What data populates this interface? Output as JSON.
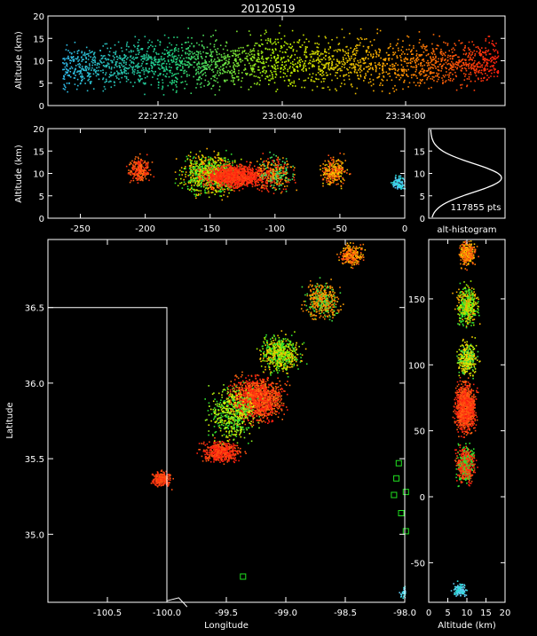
{
  "figure": {
    "title": "20120519",
    "annotation_points": "117855 pts",
    "axis_color": "#ffffff",
    "background": "#000000"
  },
  "chart_data": [
    {
      "type": "scatter",
      "panel": "altitude-vs-time",
      "x_ticks": [
        "22:27:20",
        "23:00:40",
        "23:34:00"
      ],
      "ylabel": "Altitude (km)",
      "y_ticks": [
        0,
        5,
        10,
        15,
        20
      ],
      "ylim": [
        0,
        20
      ],
      "color_encoding": "time (cyan early → red late)",
      "density_profile": [
        {
          "x_frac": 0.0,
          "alt_lo": 3,
          "alt_hi": 14,
          "color": "#2fb8e8"
        },
        {
          "x_frac": 0.25,
          "alt_lo": 3,
          "alt_hi": 16,
          "color": "#20d080"
        },
        {
          "x_frac": 0.5,
          "alt_lo": 3,
          "alt_hi": 17,
          "color": "#b6f000"
        },
        {
          "x_frac": 0.75,
          "alt_lo": 3,
          "alt_hi": 16,
          "color": "#ffa000"
        },
        {
          "x_frac": 1.0,
          "alt_lo": 4,
          "alt_hi": 16,
          "color": "#ff2010"
        }
      ]
    },
    {
      "type": "scatter",
      "panel": "altitude-vs-east-west",
      "x_ticks": [
        -250,
        -200,
        -150,
        -100,
        -50,
        0
      ],
      "xlim": [
        -275,
        0
      ],
      "ylabel": "Altitude (km)",
      "y_ticks": [
        0,
        5,
        10,
        15,
        20
      ],
      "ylim": [
        0,
        20
      ]
    },
    {
      "type": "line",
      "panel": "alt-histogram",
      "xlabel": "alt-histogram",
      "y_ticks": [
        0,
        5,
        10,
        15
      ],
      "ylim": [
        0,
        20
      ],
      "peak_altitude_km": 9,
      "spread_km": 3.2,
      "points_label": "117855 pts"
    },
    {
      "type": "scatter",
      "panel": "plan-view",
      "xlabel": "Longitude",
      "ylabel": "Latitude",
      "x_ticks": [
        -100.5,
        -100.0,
        -99.5,
        -99.0,
        -98.5,
        -98.0
      ],
      "y_ticks": [
        35.0,
        35.5,
        36.0,
        36.5
      ],
      "xlim": [
        -101.0,
        -98.0
      ],
      "ylim": [
        34.55,
        36.95
      ],
      "stations": [
        [
          -98.05,
          35.47
        ],
        [
          -98.07,
          35.37
        ],
        [
          -98.09,
          35.26
        ],
        [
          -97.99,
          35.28
        ],
        [
          -98.03,
          35.14
        ],
        [
          -97.99,
          35.02
        ],
        [
          -99.36,
          34.72
        ]
      ],
      "state_boundary": [
        [
          -101.0,
          36.5
        ],
        [
          -100.0,
          36.5
        ],
        [
          -100.0,
          34.56
        ],
        [
          -99.9,
          34.58
        ],
        [
          -99.83,
          34.52
        ]
      ]
    },
    {
      "type": "scatter",
      "panel": "north-south-vs-altitude",
      "xlabel": "Altitude (km)",
      "x_ticks": [
        0,
        5,
        10,
        15,
        20
      ],
      "xlim": [
        0,
        20
      ],
      "y_ticks": [
        -50,
        0,
        50,
        100,
        150
      ],
      "ylim": [
        -80,
        195
      ]
    }
  ]
}
